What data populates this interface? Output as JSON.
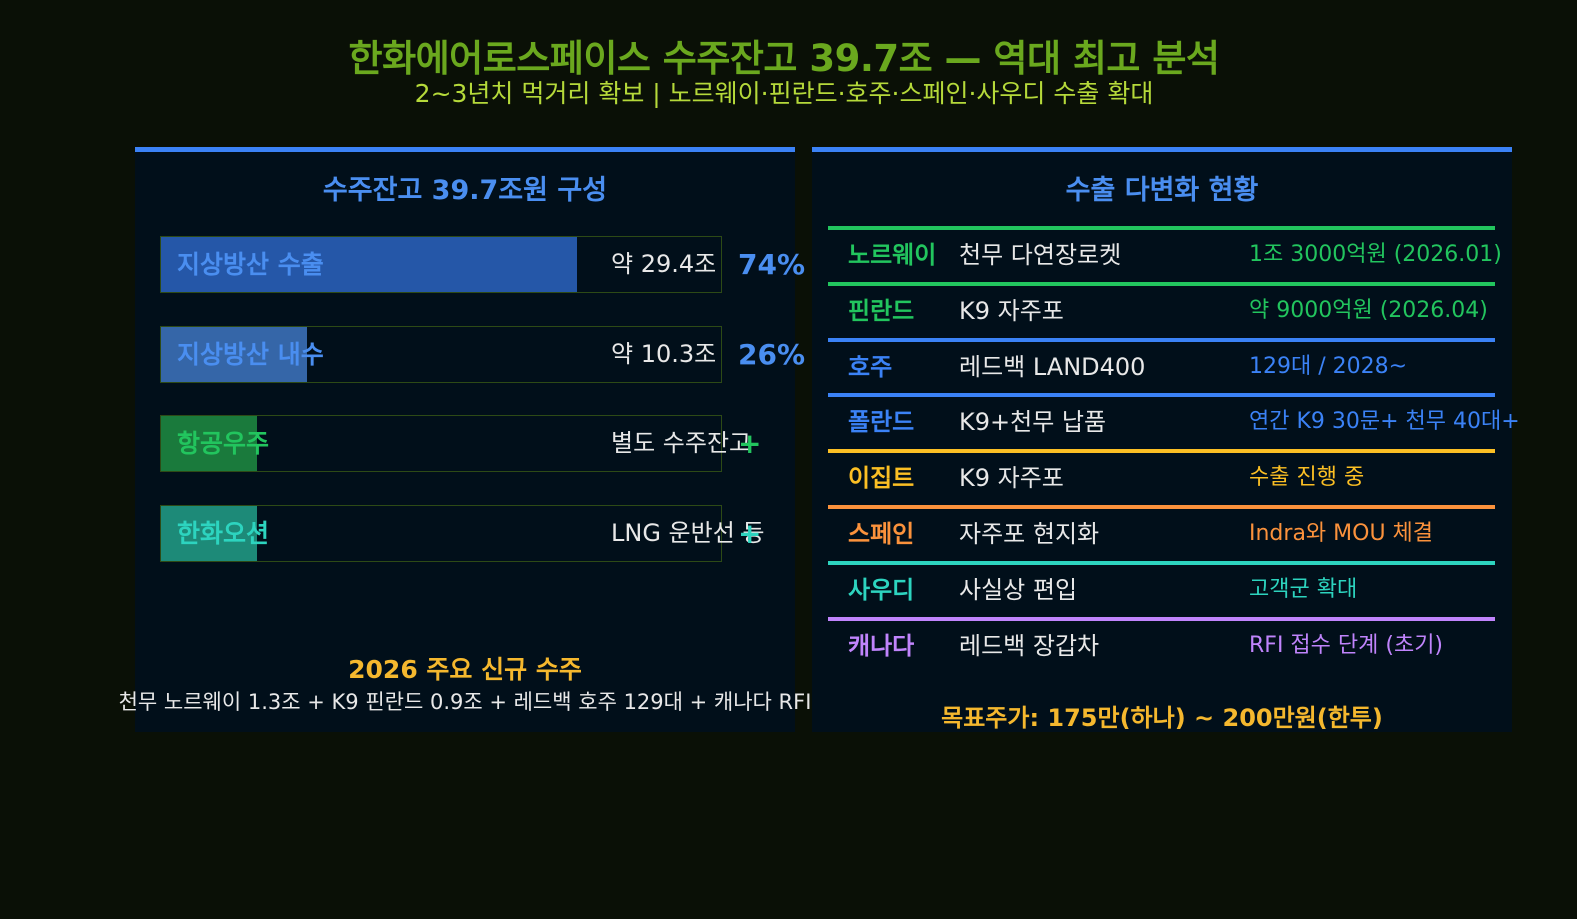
{
  "title": "한화에어로스페이스 수주잔고 39.7조 — 역대 최고 분석",
  "subtitle": "2~3년치 먹거리 확보 | 노르웨이·핀란드·호주·스페인·사우디 수출 확대",
  "left_panel": {
    "title": "수주잔고 39.7조원 구성",
    "footer_title": "2026 주요 신규 수주",
    "footer_text": "천무 노르웨이 1.3조 + K9 핀란드 0.9조 + 레드백 호주 129대 + 캐나다 RFI"
  },
  "right_panel": {
    "title": "수출 다변화 현황",
    "target": "목표주가: 175만(하나) ~ 200만원(한투)",
    "rows": [
      {
        "country": "노르웨이",
        "item": "천무 다연장로켓",
        "info": "1조 3000억원 (2026.01)",
        "color": "#22c55e"
      },
      {
        "country": "핀란드",
        "item": "K9 자주포",
        "info": "약 9000억원 (2026.04)",
        "color": "#22c55e"
      },
      {
        "country": "호주",
        "item": "레드백 LAND400",
        "info": "129대 / 2028~",
        "color": "#3b82f6"
      },
      {
        "country": "폴란드",
        "item": "K9+천무 납품",
        "info": "연간 K9 30문+ 천무 40대+",
        "color": "#3b82f6"
      },
      {
        "country": "이집트",
        "item": "K9 자주포",
        "info": "수출 진행 중",
        "color": "#fbbf24"
      },
      {
        "country": "스페인",
        "item": "자주포 현지화",
        "info": "Indra와 MOU 체결",
        "color": "#fb923c"
      },
      {
        "country": "사우디",
        "item": "사실상 편입",
        "info": "고객군 확대",
        "color": "#2dd4bf"
      },
      {
        "country": "캐나다",
        "item": "레드백 장갑차",
        "info": "RFI 접수 단계 (초기)",
        "color": "#c084fc"
      }
    ]
  },
  "chart_data": {
    "type": "bar",
    "orientation": "horizontal",
    "title": "수주잔고 39.7조원 구성",
    "categories": [
      "지상방산 수출",
      "지상방산 내수",
      "항공우주",
      "한화오션"
    ],
    "value_labels": [
      "약 29.4조",
      "약 10.3조",
      "별도 수주잔고",
      "LNG 운반선 등"
    ],
    "pct_labels": [
      "74%",
      "26%",
      "+",
      "+"
    ],
    "values": [
      74,
      26,
      17,
      17
    ],
    "xlim": [
      0,
      100
    ],
    "bar_colors": [
      "#2557a8",
      "#3566a8",
      "#1a7a3c",
      "#1d8a78"
    ],
    "label_colors": [
      "#4a8ef0",
      "#4a8ef0",
      "#22c55e",
      "#2dd4bf"
    ],
    "pct_colors": [
      "#4a8ef0",
      "#4a8ef0",
      "#22c55e",
      "#2dd4bf"
    ]
  }
}
